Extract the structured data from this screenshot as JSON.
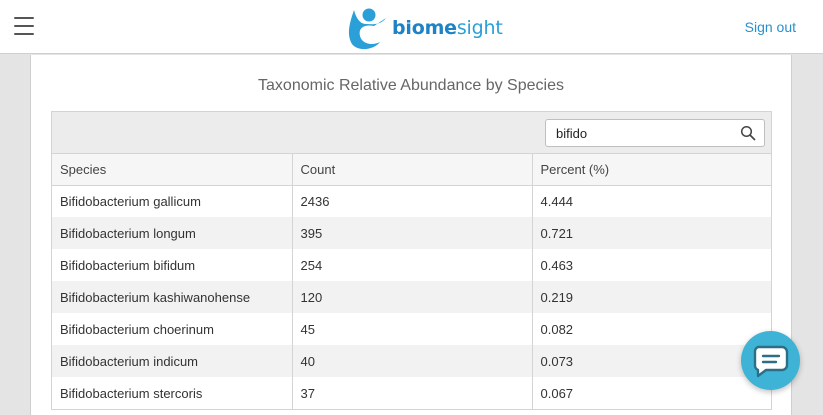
{
  "header": {
    "logo_text_bold": "biome",
    "logo_text_rest": "sight",
    "sign_out_label": "Sign out",
    "menu_icon": "hamburger-menu-icon",
    "logo_icon": "biomesight-figure-logo"
  },
  "main": {
    "title": "Taxonomic Relative Abundance by Species",
    "search": {
      "value": "bifido",
      "icon": "search-icon"
    },
    "columns": [
      "Species",
      "Count",
      "Percent (%)"
    ],
    "rows": [
      [
        "Bifidobacterium gallicum",
        "2436",
        "4.444"
      ],
      [
        "Bifidobacterium longum",
        "395",
        "0.721"
      ],
      [
        "Bifidobacterium bifidum",
        "254",
        "0.463"
      ],
      [
        "Bifidobacterium kashiwanohense",
        "120",
        "0.219"
      ],
      [
        "Bifidobacterium choerinum",
        "45",
        "0.082"
      ],
      [
        "Bifidobacterium indicum",
        "40",
        "0.073"
      ],
      [
        "Bifidobacterium stercoris",
        "37",
        "0.067"
      ]
    ]
  },
  "chat_widget": {
    "icon": "chat-bubble-icon"
  },
  "colors": {
    "brand": "#2a9fd8",
    "link": "#2a8fd0",
    "chat": "#3eb3d6"
  }
}
